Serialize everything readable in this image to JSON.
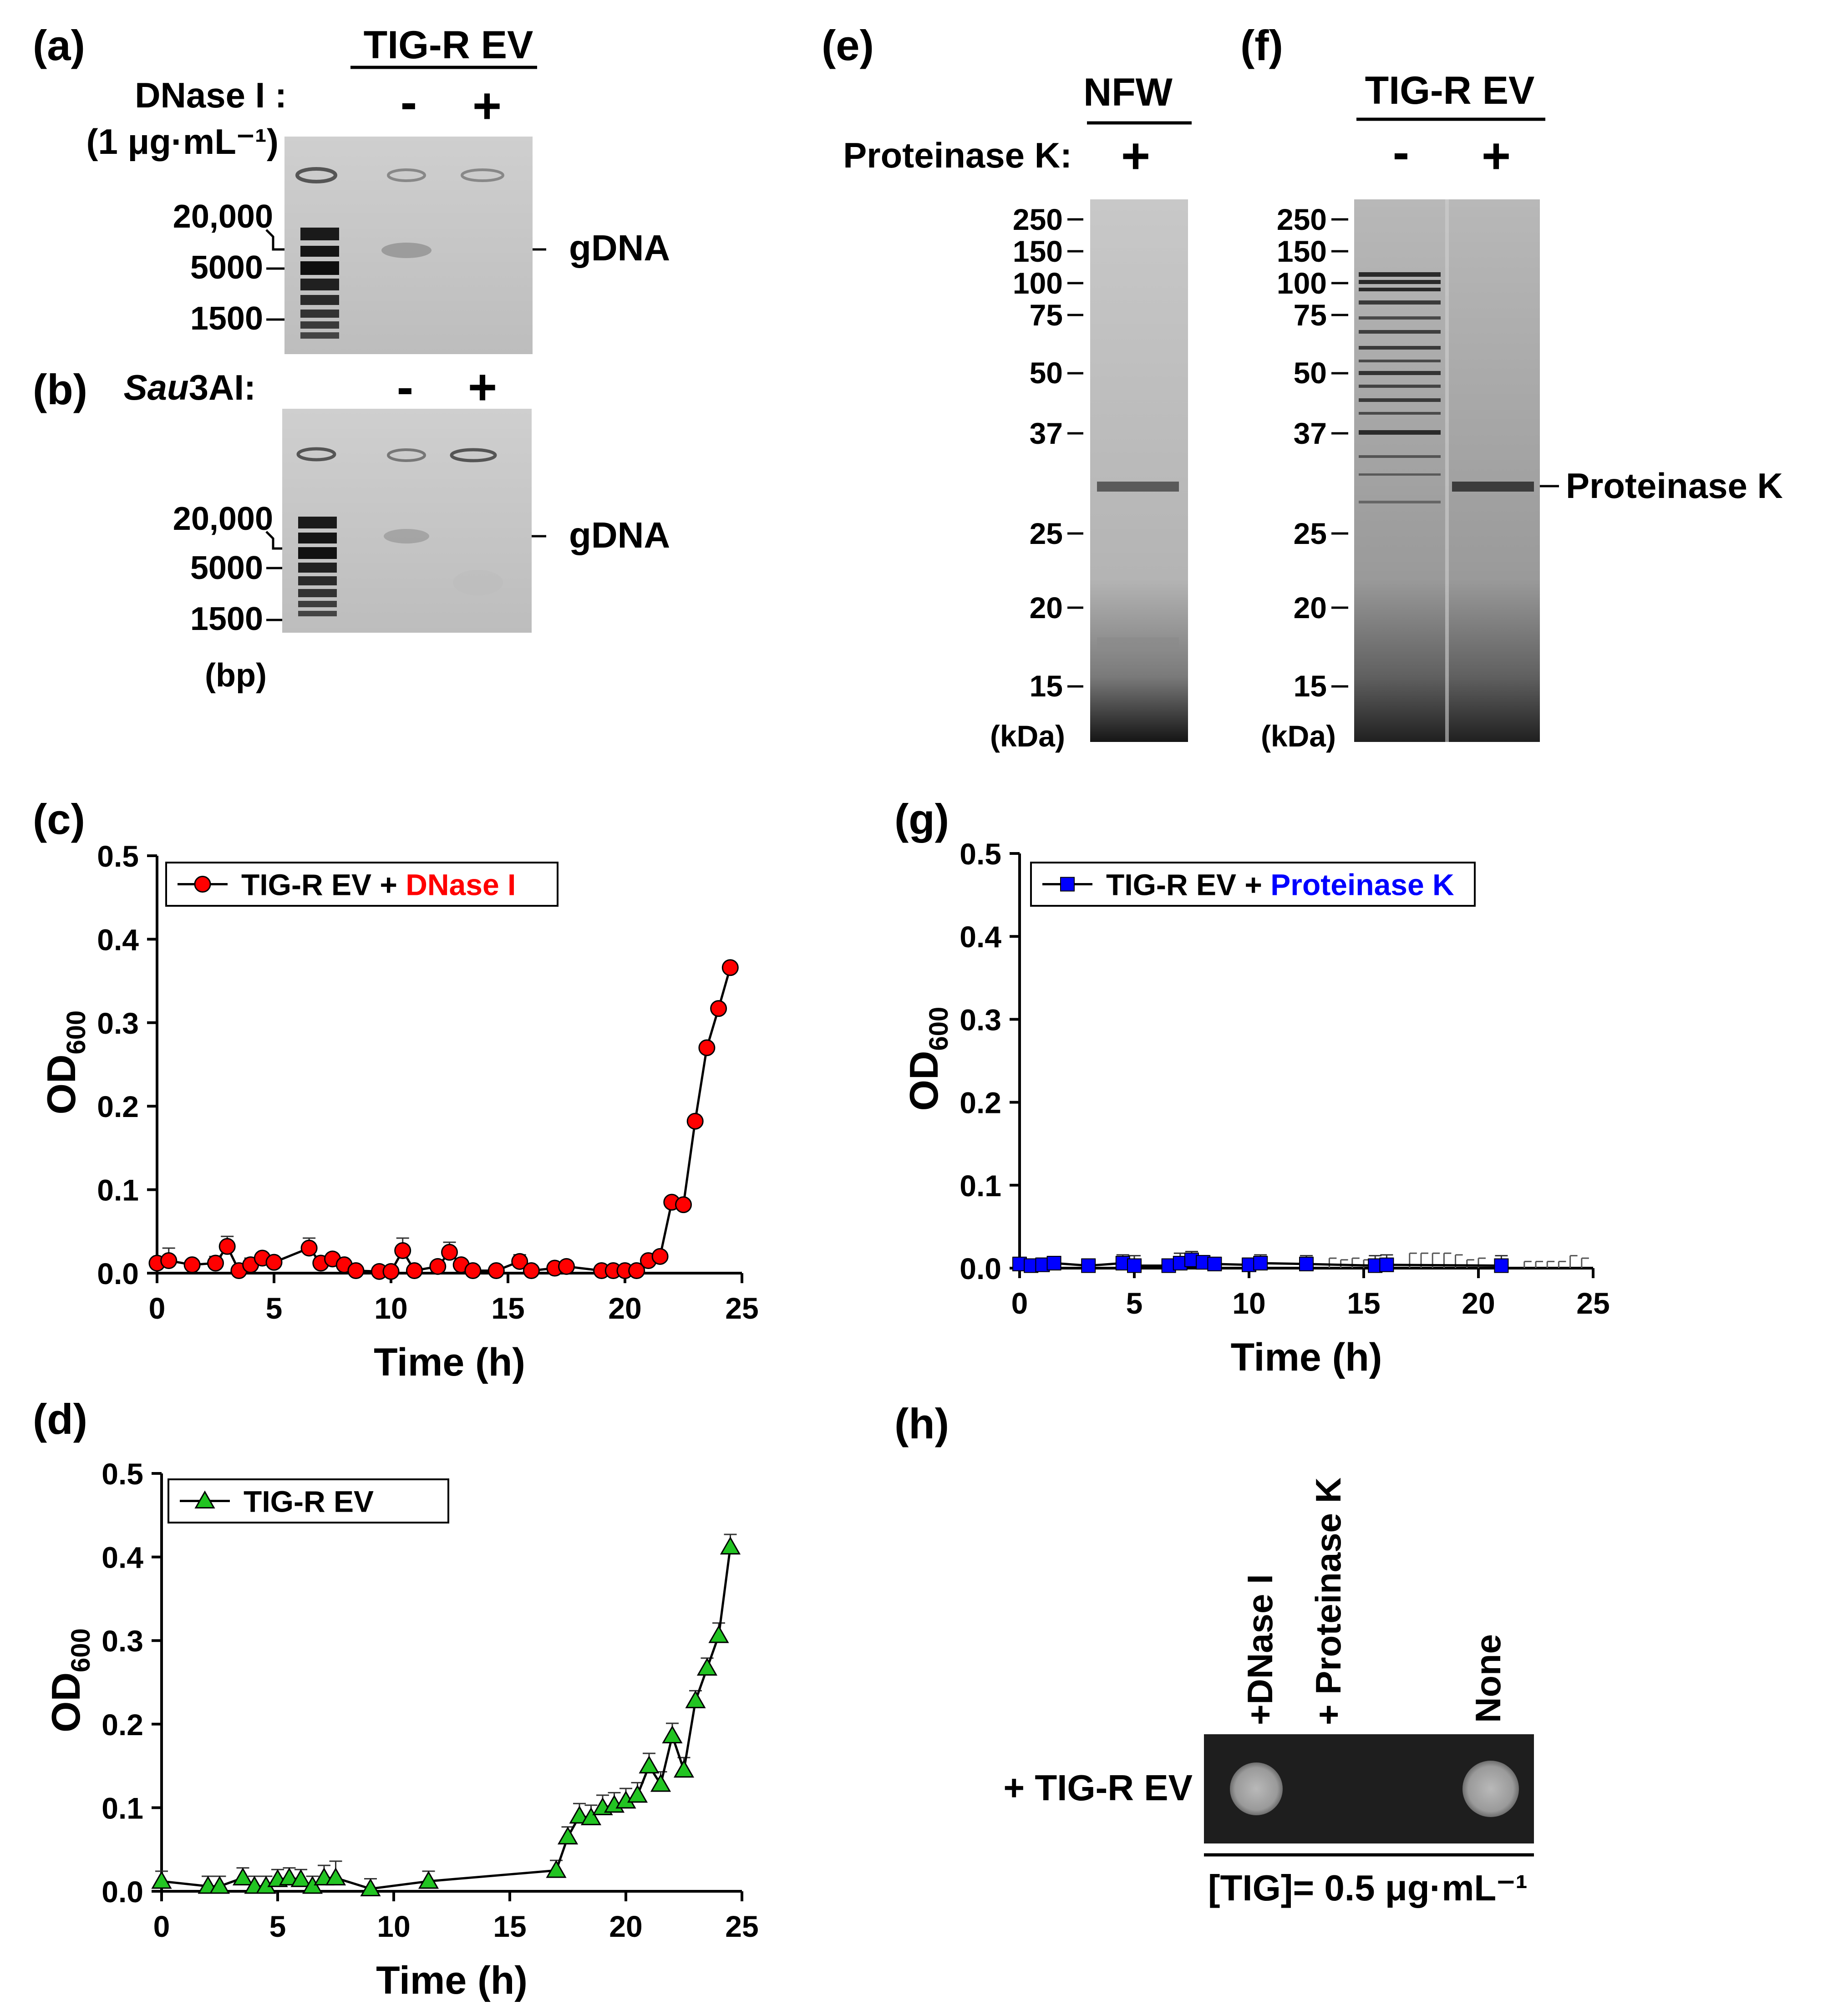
{
  "panels": {
    "a": {
      "letter": "(a)",
      "title": "TIG-R EV",
      "treatment_line1": "DNase I :",
      "treatment_line2": "(1 μg·mL⁻¹)",
      "minus": "-",
      "plus": "+",
      "band_label": "gDNA",
      "markers": [
        "20,000",
        "5000",
        "1500"
      ]
    },
    "b": {
      "letter": "(b)",
      "treatment_italic": "Sau",
      "treatment_rest": "3AI:",
      "minus": "-",
      "plus": "+",
      "band_label": "gDNA",
      "markers": [
        "20,000",
        "5000",
        "1500"
      ],
      "unit": "(bp)"
    },
    "e": {
      "letter": "(e)",
      "title": "NFW",
      "treatment": "Proteinase K:",
      "plus": "+",
      "markers": [
        "250",
        "150",
        "100",
        "75",
        "50",
        "37",
        "25",
        "20",
        "15"
      ],
      "unit": "(kDa)"
    },
    "f": {
      "letter": "(f)",
      "title": "TIG-R EV",
      "minus": "-",
      "plus": "+",
      "markers": [
        "250",
        "150",
        "100",
        "75",
        "50",
        "37",
        "25",
        "20",
        "15"
      ],
      "unit": "(kDa)",
      "band_label": "Proteinase K"
    },
    "h": {
      "letter": "(h)",
      "columns": [
        "+DNase I",
        "+ Proteinase K",
        "None"
      ],
      "row_label": "+ TIG-R EV",
      "footer": "[TIG]= 0.5 μg·mL⁻¹"
    }
  },
  "colors": {
    "dnase": "#ff0000",
    "proteinase": "#0000ff",
    "green": "#22c422"
  },
  "chart_data": [
    {
      "id": "c",
      "letter": "(c)",
      "type": "line",
      "legend_prefix": "TIG-R EV + ",
      "legend_highlight": "DNase I",
      "xlabel": "Time (h)",
      "ylabel_main": "OD",
      "ylabel_sub": "600",
      "xlim": [
        0,
        25
      ],
      "ylim": [
        0,
        0.5
      ],
      "xticks": [
        "0",
        "5",
        "10",
        "15",
        "20",
        "25"
      ],
      "yticks": [
        "0.0",
        "0.1",
        "0.2",
        "0.3",
        "0.4",
        "0.5"
      ],
      "x": [
        0,
        0.5,
        1.5,
        2.5,
        3,
        3.5,
        4,
        4.5,
        5,
        6.5,
        7,
        7.5,
        8,
        8.5,
        9.5,
        10,
        10.5,
        11,
        12,
        12.5,
        13,
        13.5,
        14.5,
        15.5,
        16,
        17,
        17.5,
        19,
        19.5,
        20,
        20.5,
        21,
        21.5,
        22,
        22.5,
        23,
        23.5,
        24,
        24.5
      ],
      "y": [
        0.012,
        0.015,
        0.01,
        0.012,
        0.032,
        0.003,
        0.01,
        0.018,
        0.013,
        0.03,
        0.012,
        0.017,
        0.01,
        0.003,
        0.002,
        0.002,
        0.027,
        0.003,
        0.008,
        0.025,
        0.01,
        0.003,
        0.003,
        0.014,
        0.003,
        0.006,
        0.008,
        0.003,
        0.003,
        0.003,
        0.003,
        0.015,
        0.02,
        0.085,
        0.082,
        0.182,
        0.27,
        0.317,
        0.366
      ],
      "err": [
        0.005,
        0.015,
        0.004,
        0.008,
        0.012,
        0.006,
        0.008,
        0.006,
        0.005,
        0.012,
        0.007,
        0.006,
        0.005,
        0.004,
        0.004,
        0.004,
        0.015,
        0.004,
        0.006,
        0.012,
        0.006,
        0.004,
        0.004,
        0.008,
        0.004,
        0.006,
        0.006,
        0.006,
        0.004,
        0.004,
        0.004,
        0.006,
        0.005,
        0.005,
        0.005,
        0.005,
        0.004,
        0.004,
        0.004
      ]
    },
    {
      "id": "d",
      "letter": "(d)",
      "type": "line",
      "legend_prefix": "TIG-R EV",
      "legend_highlight": "",
      "xlabel": "Time (h)",
      "ylabel_main": "OD",
      "ylabel_sub": "600",
      "xlim": [
        0,
        25
      ],
      "ylim": [
        0,
        0.5
      ],
      "xticks": [
        "0",
        "5",
        "10",
        "15",
        "20",
        "25"
      ],
      "yticks": [
        "0.0",
        "0.1",
        "0.2",
        "0.3",
        "0.4",
        "0.5"
      ],
      "x": [
        0,
        2,
        2.5,
        3.5,
        4,
        4.5,
        5,
        5.5,
        6,
        6.5,
        7,
        7.5,
        9,
        11.5,
        17,
        17.5,
        18,
        18.5,
        19,
        19.5,
        20,
        20.5,
        21,
        21.5,
        22,
        22.5,
        23,
        23.5,
        24,
        24.5
      ],
      "y": [
        0.012,
        0.006,
        0.006,
        0.016,
        0.006,
        0.006,
        0.014,
        0.016,
        0.014,
        0.006,
        0.016,
        0.016,
        0.003,
        0.012,
        0.025,
        0.065,
        0.09,
        0.088,
        0.1,
        0.103,
        0.108,
        0.115,
        0.15,
        0.128,
        0.186,
        0.145,
        0.228,
        0.267,
        0.306,
        0.412
      ],
      "err": [
        0.012,
        0.012,
        0.012,
        0.012,
        0.012,
        0.012,
        0.012,
        0.012,
        0.012,
        0.012,
        0.015,
        0.02,
        0.012,
        0.012,
        0.012,
        0.012,
        0.015,
        0.015,
        0.015,
        0.015,
        0.015,
        0.015,
        0.015,
        0.015,
        0.015,
        0.015,
        0.012,
        0.012,
        0.015,
        0.015
      ]
    },
    {
      "id": "g",
      "letter": "(g)",
      "type": "line",
      "legend_prefix": "TIG-R EV + ",
      "legend_highlight": "Proteinase K",
      "xlabel": "Time (h)",
      "ylabel_main": "OD",
      "ylabel_sub": "600",
      "xlim": [
        0,
        25
      ],
      "ylim": [
        0,
        0.5
      ],
      "xticks": [
        "0",
        "5",
        "10",
        "15",
        "20",
        "25"
      ],
      "yticks": [
        "0.0",
        "0.1",
        "0.2",
        "0.3",
        "0.4",
        "0.5"
      ],
      "x": [
        0,
        0.5,
        1,
        1.5,
        3,
        4.5,
        5,
        6.5,
        7,
        7.5,
        8,
        8.5,
        10,
        10.5,
        12.5,
        15.5,
        16,
        21
      ],
      "y": [
        0.005,
        0.003,
        0.004,
        0.006,
        0.003,
        0.006,
        0.003,
        0.003,
        0.006,
        0.01,
        0.007,
        0.005,
        0.004,
        0.006,
        0.005,
        0.003,
        0.004,
        0.003
      ],
      "err": [
        0.008,
        0.008,
        0.008,
        0.008,
        0.008,
        0.01,
        0.012,
        0.008,
        0.012,
        0.01,
        0.008,
        0.008,
        0.008,
        0.01,
        0.01,
        0.012,
        0.012,
        0.012
      ],
      "extra_err_x": [
        13.5,
        14,
        14.5,
        15,
        17,
        17.5,
        18,
        18.5,
        19,
        19.5,
        20,
        22,
        22.5,
        23,
        23.5,
        24,
        24.5
      ],
      "extra_err_top": [
        0.012,
        0.01,
        0.012,
        0.01,
        0.018,
        0.018,
        0.018,
        0.018,
        0.016,
        0.01,
        0.012,
        0.008,
        0.008,
        0.008,
        0.008,
        0.015,
        0.012
      ]
    }
  ]
}
